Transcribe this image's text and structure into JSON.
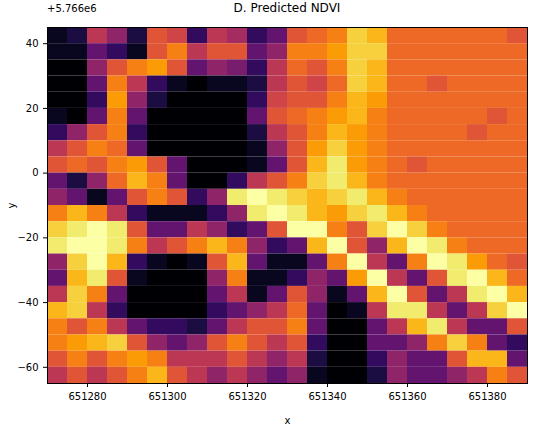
{
  "chart_data": {
    "type": "heatmap",
    "title": "D. Predicted NDVI",
    "x_label": "x",
    "y_label": "y",
    "annotations": [
      "+5.766e6"
    ],
    "xlim": [
      651270,
      651390
    ],
    "ylim": [
      -65,
      45
    ],
    "xticks": [
      651280,
      651300,
      651320,
      651340,
      651360,
      651380
    ],
    "yticks": [
      -60,
      -40,
      -20,
      0,
      20,
      40
    ],
    "color": "inferno",
    "x_edges": [
      651270,
      651275,
      651280,
      651285,
      651290,
      651295,
      651300,
      651305,
      651310,
      651315,
      651320,
      651325,
      651330,
      651335,
      651340,
      651345,
      651350,
      651355,
      651360,
      651365,
      651370,
      651375,
      651380,
      651385,
      651390
    ],
    "y_edges": [
      45,
      40,
      35,
      30,
      25,
      20,
      15,
      10,
      5,
      0,
      -5,
      -10,
      -15,
      -20,
      -25,
      -30,
      -35,
      -40,
      -45,
      -50,
      -55,
      -60,
      -65
    ],
    "cells": [
      [
        0.1,
        0.15,
        0.5,
        0.4,
        0.15,
        0.6,
        0.55,
        0.2,
        0.5,
        0.45,
        0.2,
        0.3,
        0.6,
        0.65,
        0.7,
        0.85,
        0.8,
        0.65,
        0.65,
        0.65,
        0.65,
        0.65,
        0.65,
        0.6
      ],
      [
        0.1,
        0.1,
        0.3,
        0.2,
        0.1,
        0.6,
        0.7,
        0.5,
        0.6,
        0.6,
        0.3,
        0.4,
        0.7,
        0.7,
        0.75,
        0.85,
        0.85,
        0.65,
        0.65,
        0.65,
        0.65,
        0.65,
        0.65,
        0.65
      ],
      [
        0.05,
        0.05,
        0.4,
        0.6,
        0.7,
        0.75,
        0.6,
        0.3,
        0.4,
        0.35,
        0.2,
        0.5,
        0.65,
        0.6,
        0.7,
        0.85,
        0.8,
        0.65,
        0.65,
        0.65,
        0.65,
        0.65,
        0.65,
        0.65
      ],
      [
        0.05,
        0.05,
        0.3,
        0.7,
        0.5,
        0.2,
        0.1,
        0.05,
        0.1,
        0.1,
        0.15,
        0.5,
        0.6,
        0.55,
        0.65,
        0.85,
        0.8,
        0.65,
        0.65,
        0.6,
        0.65,
        0.65,
        0.65,
        0.65
      ],
      [
        0.05,
        0.05,
        0.2,
        0.75,
        0.4,
        0.15,
        0.05,
        0.05,
        0.05,
        0.05,
        0.2,
        0.55,
        0.6,
        0.6,
        0.7,
        0.8,
        0.75,
        0.65,
        0.65,
        0.65,
        0.65,
        0.65,
        0.65,
        0.65
      ],
      [
        0.1,
        0.05,
        0.3,
        0.7,
        0.3,
        0.05,
        0.05,
        0.05,
        0.05,
        0.05,
        0.3,
        0.6,
        0.65,
        0.7,
        0.75,
        0.8,
        0.7,
        0.65,
        0.65,
        0.65,
        0.65,
        0.65,
        0.6,
        0.65
      ],
      [
        0.2,
        0.4,
        0.6,
        0.7,
        0.2,
        0.05,
        0.05,
        0.05,
        0.05,
        0.05,
        0.15,
        0.5,
        0.6,
        0.7,
        0.8,
        0.75,
        0.7,
        0.65,
        0.65,
        0.65,
        0.65,
        0.6,
        0.65,
        0.65
      ],
      [
        0.5,
        0.6,
        0.7,
        0.65,
        0.3,
        0.05,
        0.05,
        0.05,
        0.05,
        0.05,
        0.1,
        0.4,
        0.6,
        0.75,
        0.85,
        0.75,
        0.7,
        0.65,
        0.65,
        0.65,
        0.65,
        0.65,
        0.65,
        0.65
      ],
      [
        0.6,
        0.65,
        0.6,
        0.7,
        0.75,
        0.6,
        0.3,
        0.05,
        0.05,
        0.05,
        0.1,
        0.3,
        0.6,
        0.8,
        0.9,
        0.75,
        0.7,
        0.65,
        0.6,
        0.65,
        0.65,
        0.65,
        0.65,
        0.65
      ],
      [
        0.3,
        0.15,
        0.4,
        0.65,
        0.8,
        0.7,
        0.3,
        0.05,
        0.05,
        0.2,
        0.5,
        0.6,
        0.7,
        0.85,
        0.9,
        0.8,
        0.7,
        0.65,
        0.65,
        0.65,
        0.65,
        0.65,
        0.65,
        0.65
      ],
      [
        0.4,
        0.3,
        0.1,
        0.3,
        0.6,
        0.7,
        0.6,
        0.2,
        0.4,
        0.9,
        0.95,
        0.9,
        0.85,
        0.8,
        0.85,
        0.9,
        0.8,
        0.7,
        0.65,
        0.65,
        0.65,
        0.65,
        0.65,
        0.65
      ],
      [
        0.7,
        0.8,
        0.7,
        0.5,
        0.2,
        0.1,
        0.1,
        0.1,
        0.2,
        0.4,
        0.9,
        0.95,
        0.9,
        0.8,
        0.75,
        0.85,
        0.9,
        0.8,
        0.7,
        0.65,
        0.65,
        0.65,
        0.65,
        0.65
      ],
      [
        0.85,
        0.9,
        0.95,
        0.9,
        0.6,
        0.3,
        0.3,
        0.5,
        0.4,
        0.2,
        0.3,
        0.6,
        0.95,
        0.95,
        0.7,
        0.6,
        0.85,
        0.95,
        0.85,
        0.7,
        0.65,
        0.65,
        0.65,
        0.65
      ],
      [
        0.9,
        0.95,
        0.95,
        0.9,
        0.7,
        0.5,
        0.6,
        0.7,
        0.8,
        0.7,
        0.4,
        0.2,
        0.3,
        0.8,
        0.95,
        0.6,
        0.4,
        0.8,
        0.95,
        0.9,
        0.7,
        0.65,
        0.65,
        0.65
      ],
      [
        0.4,
        0.85,
        0.95,
        0.8,
        0.2,
        0.1,
        0.05,
        0.1,
        0.6,
        0.8,
        0.3,
        0.1,
        0.1,
        0.3,
        0.7,
        0.95,
        0.5,
        0.3,
        0.7,
        0.95,
        0.9,
        0.75,
        0.65,
        0.6
      ],
      [
        0.3,
        0.8,
        0.9,
        0.6,
        0.1,
        0.05,
        0.05,
        0.05,
        0.4,
        0.7,
        0.1,
        0.1,
        0.2,
        0.4,
        0.3,
        0.75,
        0.95,
        0.5,
        0.3,
        0.6,
        0.9,
        0.95,
        0.8,
        0.65
      ],
      [
        0.5,
        0.85,
        0.7,
        0.3,
        0.05,
        0.05,
        0.05,
        0.05,
        0.3,
        0.5,
        0.1,
        0.3,
        0.6,
        0.4,
        0.1,
        0.3,
        0.8,
        0.95,
        0.6,
        0.3,
        0.5,
        0.9,
        0.95,
        0.8
      ],
      [
        0.8,
        0.85,
        0.5,
        0.2,
        0.05,
        0.05,
        0.05,
        0.05,
        0.2,
        0.3,
        0.4,
        0.5,
        0.65,
        0.3,
        0.05,
        0.1,
        0.5,
        0.9,
        0.9,
        0.5,
        0.3,
        0.5,
        0.85,
        0.95
      ],
      [
        0.7,
        0.6,
        0.7,
        0.5,
        0.3,
        0.2,
        0.2,
        0.15,
        0.3,
        0.5,
        0.6,
        0.6,
        0.7,
        0.3,
        0.05,
        0.05,
        0.3,
        0.5,
        0.8,
        0.9,
        0.5,
        0.3,
        0.3,
        0.6
      ],
      [
        0.7,
        0.75,
        0.8,
        0.85,
        0.6,
        0.4,
        0.3,
        0.4,
        0.6,
        0.7,
        0.6,
        0.5,
        0.6,
        0.2,
        0.05,
        0.05,
        0.3,
        0.3,
        0.4,
        0.7,
        0.85,
        0.7,
        0.3,
        0.2
      ],
      [
        0.6,
        0.7,
        0.6,
        0.7,
        0.75,
        0.7,
        0.5,
        0.5,
        0.5,
        0.6,
        0.5,
        0.4,
        0.5,
        0.15,
        0.05,
        0.05,
        0.2,
        0.4,
        0.3,
        0.3,
        0.6,
        0.8,
        0.8,
        0.3
      ],
      [
        0.5,
        0.6,
        0.5,
        0.6,
        0.7,
        0.8,
        0.6,
        0.5,
        0.4,
        0.5,
        0.4,
        0.3,
        0.4,
        0.1,
        0.05,
        0.05,
        0.15,
        0.4,
        0.3,
        0.3,
        0.4,
        0.5,
        0.7,
        0.6
      ]
    ]
  }
}
